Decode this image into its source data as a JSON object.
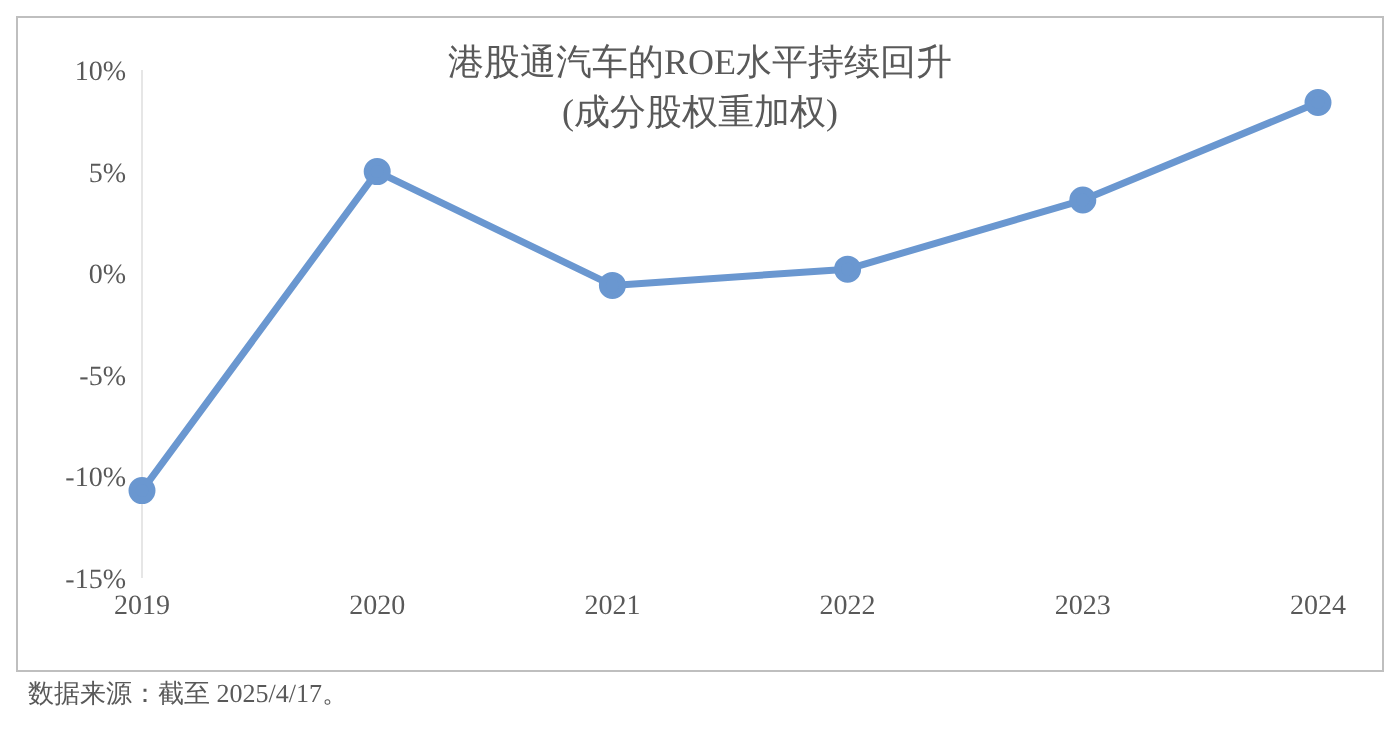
{
  "chart_data": {
    "type": "line",
    "title": "港股通汽车的ROE水平持续回升",
    "subtitle": "(成分股权重加权)",
    "categories": [
      "2019",
      "2020",
      "2021",
      "2022",
      "2023",
      "2024"
    ],
    "series": [
      {
        "color": "#6a97d0",
        "values": [
          -10.7,
          5.0,
          -0.6,
          0.2,
          3.6,
          8.4
        ]
      }
    ],
    "ylim": [
      -15,
      10
    ],
    "yticks": [
      {
        "value": -15,
        "label": "-15%"
      },
      {
        "value": -10,
        "label": "-10%"
      },
      {
        "value": -5,
        "label": "-5%"
      },
      {
        "value": 0,
        "label": "0%"
      },
      {
        "value": 5,
        "label": "5%"
      },
      {
        "value": 10,
        "label": "10%"
      }
    ],
    "grid": false,
    "legend": false,
    "marker": "circle",
    "line_style": "solid",
    "annotations": [
      "数据来源：截至 2025/4/17。"
    ]
  }
}
